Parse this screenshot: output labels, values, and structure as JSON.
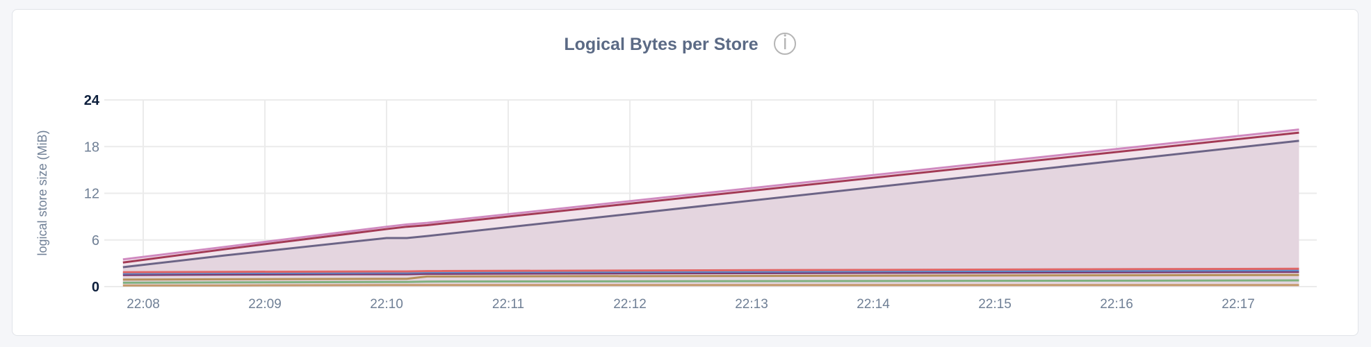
{
  "chart_data": {
    "type": "area",
    "stacked": true,
    "title": "Logical Bytes per Store",
    "title_icon": "info-icon",
    "xlabel": "",
    "ylabel": "logical store size (MiB)",
    "ylim": [
      0,
      24
    ],
    "yticks": [
      "0",
      "6",
      "12",
      "18",
      "24"
    ],
    "xticks": [
      "22:08",
      "22:09",
      "22:10",
      "22:11",
      "22:12",
      "22:13",
      "22:14",
      "22:15",
      "22:16",
      "22:17"
    ],
    "xlim": [
      "22:07:50",
      "22:17:30"
    ],
    "grid": true,
    "legend": "none",
    "x": [
      "22:07:50",
      "22:08:40",
      "22:10:00",
      "22:10:10",
      "22:10:20",
      "22:17:30"
    ],
    "series": [
      {
        "color": "#c49a6c",
        "fill": "#e4d5df",
        "values": [
          0.15,
          0.15,
          0.2,
          0.2,
          0.2,
          0.2
        ]
      },
      {
        "color": "#7fb17f",
        "fill": "#e4d5df",
        "values": [
          0.35,
          0.4,
          0.4,
          0.4,
          0.45,
          0.6
        ]
      },
      {
        "color": "#b5905a",
        "fill": "#e4d5df",
        "values": [
          0.4,
          0.4,
          0.4,
          0.4,
          0.65,
          0.7
        ]
      },
      {
        "color": "#7b3a6e",
        "fill": "#e4d5df",
        "values": [
          0.6,
          0.6,
          0.6,
          0.6,
          0.35,
          0.4
        ]
      },
      {
        "color": "#5b8ccc",
        "fill": "#e4d5df",
        "values": [
          0.2,
          0.2,
          0.2,
          0.2,
          0.2,
          0.2
        ]
      },
      {
        "color": "#e06666",
        "fill": "#e4d5df",
        "values": [
          0.15,
          0.15,
          0.15,
          0.15,
          0.15,
          0.2
        ]
      },
      {
        "color": "#6c6486",
        "fill": "#e4d5df",
        "values": [
          0.65,
          2.1,
          4.3,
          4.3,
          4.5,
          16.45
        ]
      },
      {
        "color": "#a33a55",
        "fill": "#f1e3eb",
        "values": [
          0.6,
          0.8,
          1.15,
          1.45,
          1.4,
          1.05
        ]
      },
      {
        "color": "#d08ac0",
        "fill": "#f3e6ee",
        "values": [
          0.4,
          0.3,
          0.3,
          0.3,
          0.3,
          0.4
        ]
      }
    ]
  }
}
